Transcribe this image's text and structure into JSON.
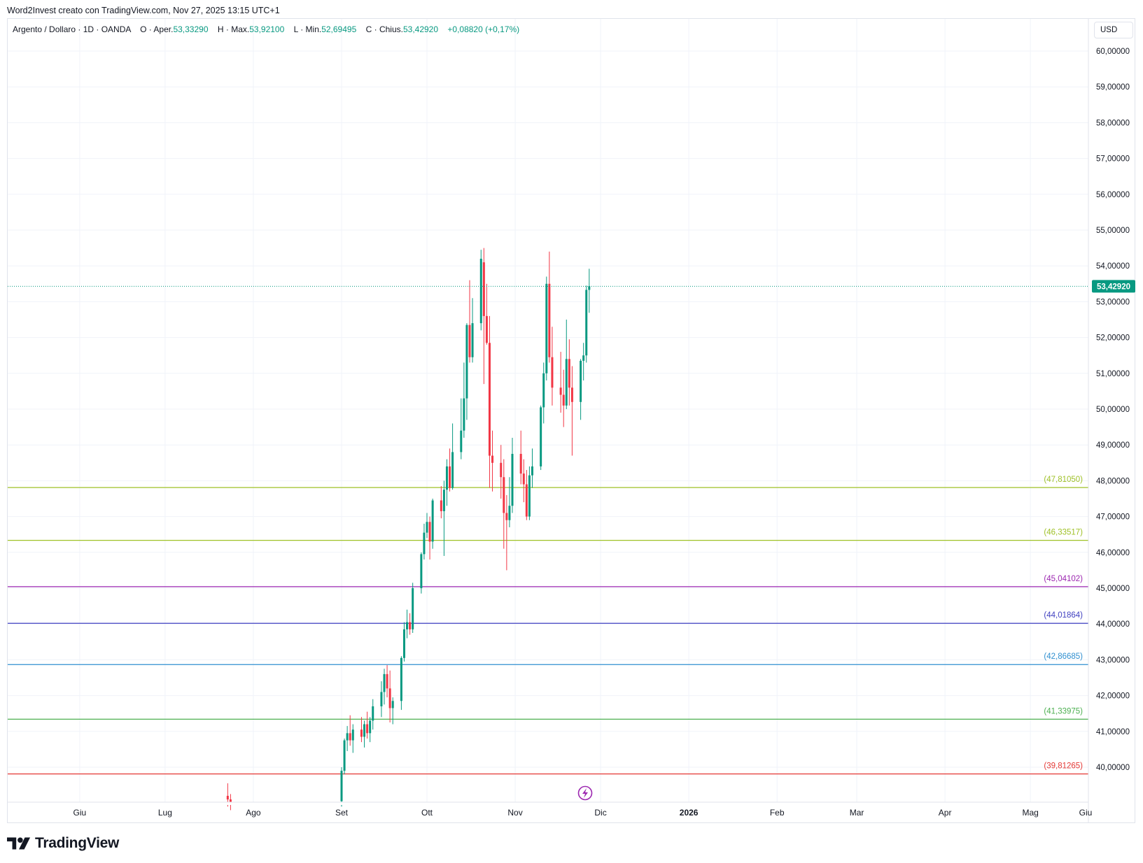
{
  "header": {
    "credit": "Word2Invest creato con TradingView.com, Nov 27, 2025 13:15 UTC+1"
  },
  "legend": {
    "symbol": "Argento / Dollaro · 1D · OANDA",
    "open_label": "O · Aper.",
    "open_value": "53,33290",
    "high_label": "H · Max.",
    "high_value": "53,92100",
    "low_label": "L · Min.",
    "low_value": "52,69495",
    "close_label": "C · Chius.",
    "close_value": "53,42920",
    "change": "+0,08820 (+0,17%)"
  },
  "currency": "USD",
  "brand": {
    "name": "TradingView",
    "logo_icon": "tradingview-logo-icon"
  },
  "colors": {
    "up": "#089981",
    "down": "#f23645",
    "grid": "#f0f3fa",
    "last_price_bg": "#089981"
  },
  "chart_data": {
    "type": "candlestick",
    "title": "",
    "ylabel": "",
    "xlabel": "",
    "ylim": [
      39.0,
      60.6
    ],
    "y_ticks": [
      "60,00000",
      "59,00000",
      "58,00000",
      "57,00000",
      "56,00000",
      "55,00000",
      "54,00000",
      "53,00000",
      "52,00000",
      "51,00000",
      "50,00000",
      "49,00000",
      "48,00000",
      "47,00000",
      "46,00000",
      "45,00000",
      "44,00000",
      "43,00000",
      "42,00000",
      "41,00000",
      "40,00000"
    ],
    "x_ticks": [
      {
        "label": "Mag",
        "date": "2025-05-01"
      },
      {
        "label": "Giu",
        "date": "2025-06-01"
      },
      {
        "label": "Lug",
        "date": "2025-07-01"
      },
      {
        "label": "Ago",
        "date": "2025-08-01"
      },
      {
        "label": "Set",
        "date": "2025-09-01"
      },
      {
        "label": "Ott",
        "date": "2025-10-01"
      },
      {
        "label": "Nov",
        "date": "2025-11-01"
      },
      {
        "label": "Dic",
        "date": "2025-12-01"
      },
      {
        "label": "2026",
        "date": "2026-01-01"
      },
      {
        "label": "Feb",
        "date": "2026-02-01"
      },
      {
        "label": "Mar",
        "date": "2026-03-01"
      },
      {
        "label": "Apr",
        "date": "2026-04-01"
      },
      {
        "label": "Mag",
        "date": "2026-05-01"
      },
      {
        "label": "Giu",
        "date": "2026-06-01"
      }
    ],
    "last_price": {
      "value": 53.4292,
      "label": "53,42920"
    },
    "levels": [
      {
        "value": 47.8105,
        "label": "(47,81050)",
        "color": "#9fc127"
      },
      {
        "value": 46.33517,
        "label": "(46,33517)",
        "color": "#9fc127"
      },
      {
        "value": 45.04102,
        "label": "(45,04102)",
        "color": "#9c27b0"
      },
      {
        "value": 44.01864,
        "label": "(44,01864)",
        "color": "#3f3fc0"
      },
      {
        "value": 42.86685,
        "label": "(42,86685)",
        "color": "#2f8fd0"
      },
      {
        "value": 41.33975,
        "label": "(41,33975)",
        "color": "#4caf50"
      },
      {
        "value": 39.81265,
        "label": "(39,81265)",
        "color": "#e53935"
      }
    ],
    "candles": [
      {
        "date": "2025-07-23",
        "o": 39.2,
        "h": 39.55,
        "l": 38.9,
        "c": 39.1
      },
      {
        "date": "2025-07-24",
        "o": 39.1,
        "h": 39.25,
        "l": 38.8,
        "c": 38.95
      },
      {
        "date": "2025-09-01",
        "o": 39.05,
        "h": 40.0,
        "l": 38.9,
        "c": 39.9
      },
      {
        "date": "2025-09-02",
        "o": 39.9,
        "h": 40.8,
        "l": 39.8,
        "c": 40.75
      },
      {
        "date": "2025-09-03",
        "o": 40.75,
        "h": 41.15,
        "l": 40.45,
        "c": 40.95
      },
      {
        "date": "2025-09-04",
        "o": 40.95,
        "h": 41.45,
        "l": 40.6,
        "c": 40.75
      },
      {
        "date": "2025-09-05",
        "o": 40.75,
        "h": 41.2,
        "l": 40.4,
        "c": 41.05
      },
      {
        "date": "2025-09-08",
        "o": 41.05,
        "h": 41.4,
        "l": 40.7,
        "c": 40.85
      },
      {
        "date": "2025-09-09",
        "o": 40.85,
        "h": 41.3,
        "l": 40.55,
        "c": 41.2
      },
      {
        "date": "2025-09-10",
        "o": 41.2,
        "h": 41.55,
        "l": 40.8,
        "c": 40.95
      },
      {
        "date": "2025-09-11",
        "o": 40.95,
        "h": 41.4,
        "l": 40.7,
        "c": 41.3
      },
      {
        "date": "2025-09-12",
        "o": 41.3,
        "h": 41.9,
        "l": 41.05,
        "c": 41.7
      },
      {
        "date": "2025-09-15",
        "o": 41.7,
        "h": 42.4,
        "l": 41.4,
        "c": 42.1
      },
      {
        "date": "2025-09-16",
        "o": 42.1,
        "h": 42.75,
        "l": 41.75,
        "c": 42.6
      },
      {
        "date": "2025-09-17",
        "o": 42.6,
        "h": 42.85,
        "l": 41.95,
        "c": 42.2
      },
      {
        "date": "2025-09-18",
        "o": 42.2,
        "h": 42.7,
        "l": 41.25,
        "c": 41.65
      },
      {
        "date": "2025-09-19",
        "o": 41.65,
        "h": 41.95,
        "l": 41.2,
        "c": 41.85
      },
      {
        "date": "2025-09-22",
        "o": 41.85,
        "h": 43.1,
        "l": 41.6,
        "c": 43.05
      },
      {
        "date": "2025-09-23",
        "o": 43.05,
        "h": 44.05,
        "l": 42.95,
        "c": 43.85
      },
      {
        "date": "2025-09-24",
        "o": 43.85,
        "h": 44.4,
        "l": 43.6,
        "c": 44.05
      },
      {
        "date": "2025-09-25",
        "o": 44.05,
        "h": 44.3,
        "l": 43.7,
        "c": 43.85
      },
      {
        "date": "2025-09-26",
        "o": 43.85,
        "h": 45.15,
        "l": 43.75,
        "c": 45.0
      },
      {
        "date": "2025-09-29",
        "o": 45.0,
        "h": 46.0,
        "l": 44.85,
        "c": 45.95
      },
      {
        "date": "2025-09-30",
        "o": 45.95,
        "h": 46.8,
        "l": 45.8,
        "c": 46.55
      },
      {
        "date": "2025-10-01",
        "o": 46.55,
        "h": 47.1,
        "l": 46.4,
        "c": 46.85
      },
      {
        "date": "2025-10-02",
        "o": 46.85,
        "h": 47.0,
        "l": 45.8,
        "c": 46.3
      },
      {
        "date": "2025-10-03",
        "o": 46.3,
        "h": 47.5,
        "l": 46.1,
        "c": 47.45
      },
      {
        "date": "2025-10-06",
        "o": 47.45,
        "h": 47.85,
        "l": 46.95,
        "c": 47.15
      },
      {
        "date": "2025-10-07",
        "o": 47.15,
        "h": 48.0,
        "l": 45.9,
        "c": 47.75
      },
      {
        "date": "2025-10-08",
        "o": 47.75,
        "h": 48.6,
        "l": 47.3,
        "c": 48.4
      },
      {
        "date": "2025-10-09",
        "o": 48.4,
        "h": 48.9,
        "l": 47.7,
        "c": 47.8
      },
      {
        "date": "2025-10-10",
        "o": 47.8,
        "h": 49.6,
        "l": 47.75,
        "c": 48.8
      },
      {
        "date": "2025-10-13",
        "o": 48.8,
        "h": 50.3,
        "l": 48.6,
        "c": 49.4
      },
      {
        "date": "2025-10-14",
        "o": 49.4,
        "h": 51.3,
        "l": 49.2,
        "c": 50.3
      },
      {
        "date": "2025-10-15",
        "o": 50.3,
        "h": 52.4,
        "l": 49.7,
        "c": 52.35
      },
      {
        "date": "2025-10-16",
        "o": 52.35,
        "h": 53.6,
        "l": 51.3,
        "c": 51.45
      },
      {
        "date": "2025-10-17",
        "o": 51.45,
        "h": 53.1,
        "l": 51.3,
        "c": 52.4
      },
      {
        "date": "2025-10-20",
        "o": 52.4,
        "h": 54.45,
        "l": 52.2,
        "c": 54.2
      },
      {
        "date": "2025-10-21",
        "o": 54.1,
        "h": 54.5,
        "l": 50.7,
        "c": 52.6
      },
      {
        "date": "2025-10-22",
        "o": 52.6,
        "h": 53.5,
        "l": 51.8,
        "c": 51.85
      },
      {
        "date": "2025-10-23",
        "o": 51.85,
        "h": 52.6,
        "l": 47.8,
        "c": 48.7
      },
      {
        "date": "2025-10-24",
        "o": 48.7,
        "h": 49.4,
        "l": 47.7,
        "c": 48.5
      },
      {
        "date": "2025-10-27",
        "o": 48.5,
        "h": 49.0,
        "l": 47.5,
        "c": 48.1
      },
      {
        "date": "2025-10-28",
        "o": 48.1,
        "h": 48.6,
        "l": 46.1,
        "c": 47.1
      },
      {
        "date": "2025-10-29",
        "o": 47.1,
        "h": 47.6,
        "l": 45.5,
        "c": 46.9
      },
      {
        "date": "2025-10-30",
        "o": 46.9,
        "h": 48.1,
        "l": 46.7,
        "c": 47.3
      },
      {
        "date": "2025-10-31",
        "o": 47.3,
        "h": 49.2,
        "l": 47.1,
        "c": 48.75
      },
      {
        "date": "2025-11-03",
        "o": 48.75,
        "h": 49.4,
        "l": 47.9,
        "c": 48.2
      },
      {
        "date": "2025-11-04",
        "o": 48.2,
        "h": 48.6,
        "l": 47.4,
        "c": 47.9
      },
      {
        "date": "2025-11-05",
        "o": 47.9,
        "h": 48.3,
        "l": 46.9,
        "c": 47.0
      },
      {
        "date": "2025-11-06",
        "o": 47.0,
        "h": 48.4,
        "l": 46.9,
        "c": 48.15
      },
      {
        "date": "2025-11-07",
        "o": 48.15,
        "h": 48.9,
        "l": 47.8,
        "c": 48.4
      },
      {
        "date": "2025-11-10",
        "o": 48.4,
        "h": 50.1,
        "l": 48.3,
        "c": 50.05
      },
      {
        "date": "2025-11-11",
        "o": 50.05,
        "h": 51.3,
        "l": 49.6,
        "c": 51.0
      },
      {
        "date": "2025-11-12",
        "o": 51.0,
        "h": 53.7,
        "l": 50.8,
        "c": 53.5
      },
      {
        "date": "2025-11-13",
        "o": 53.5,
        "h": 54.4,
        "l": 51.3,
        "c": 51.45
      },
      {
        "date": "2025-11-14",
        "o": 51.45,
        "h": 52.3,
        "l": 50.1,
        "c": 50.6
      },
      {
        "date": "2025-11-17",
        "o": 50.6,
        "h": 51.6,
        "l": 49.9,
        "c": 50.4
      },
      {
        "date": "2025-11-18",
        "o": 50.4,
        "h": 51.1,
        "l": 49.5,
        "c": 50.1
      },
      {
        "date": "2025-11-19",
        "o": 50.1,
        "h": 52.5,
        "l": 50.0,
        "c": 51.4
      },
      {
        "date": "2025-11-20",
        "o": 51.4,
        "h": 51.95,
        "l": 50.1,
        "c": 50.6
      },
      {
        "date": "2025-11-21",
        "o": 50.6,
        "h": 51.2,
        "l": 48.7,
        "c": 50.2
      },
      {
        "date": "2025-11-24",
        "o": 50.2,
        "h": 51.4,
        "l": 49.7,
        "c": 51.35
      },
      {
        "date": "2025-11-25",
        "o": 51.35,
        "h": 51.85,
        "l": 50.8,
        "c": 51.5
      },
      {
        "date": "2025-11-26",
        "o": 51.5,
        "h": 53.45,
        "l": 51.3,
        "c": 53.33
      },
      {
        "date": "2025-11-27",
        "o": 53.33,
        "h": 53.92,
        "l": 52.69,
        "c": 53.43
      }
    ]
  }
}
